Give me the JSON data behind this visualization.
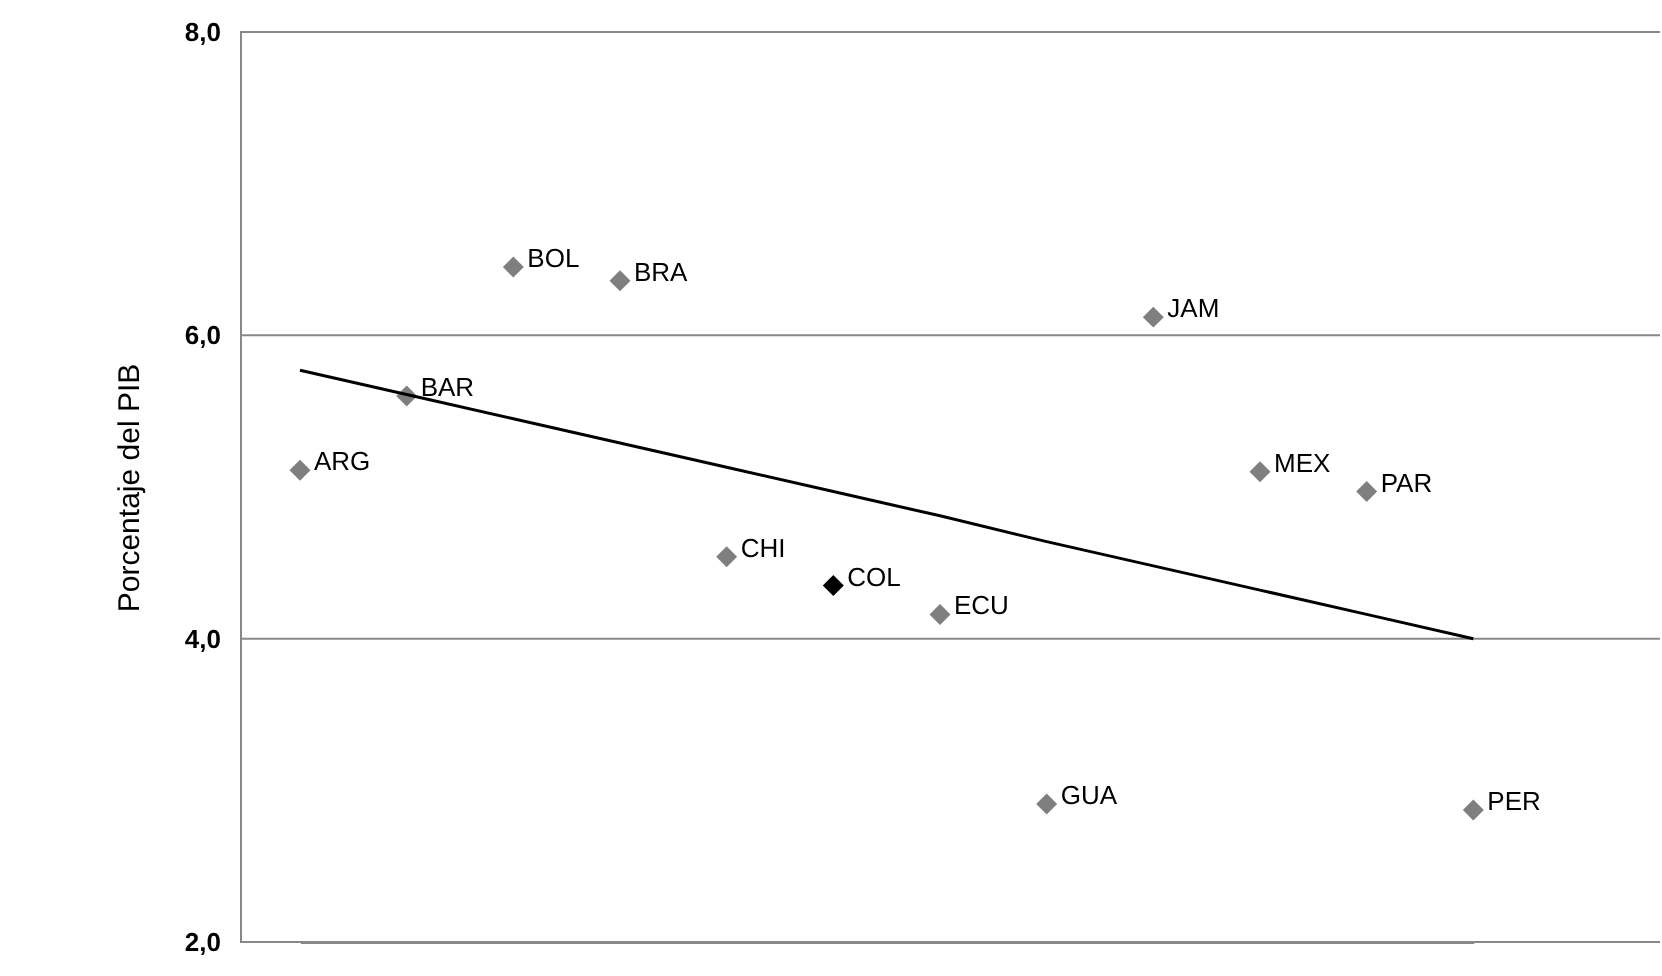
{
  "chart_data": {
    "type": "scatter",
    "ylabel": "Porcentaje del PIB",
    "categories": [
      null,
      null,
      null,
      null,
      null,
      null,
      null,
      null,
      null,
      null,
      null,
      null
    ],
    "ylim": [
      2,
      8
    ],
    "yticks": [
      {
        "value": 2,
        "label": "2,0"
      },
      {
        "value": 4,
        "label": "4,0"
      },
      {
        "value": 6,
        "label": "6,0"
      },
      {
        "value": 8,
        "label": "8,0"
      }
    ],
    "tick_labels": "y",
    "grid": "y",
    "marker": "diamond",
    "series": [
      {
        "values": [
          5.11,
          5.6,
          6.45,
          6.36,
          4.54,
          4.35,
          4.16,
          2.91,
          6.12,
          5.1,
          4.97,
          2.87
        ],
        "colors": [
          "#7f7f7f",
          "#7f7f7f",
          "#7f7f7f",
          "#7f7f7f",
          "#7f7f7f",
          "#000000",
          "#7f7f7f",
          "#7f7f7f",
          "#7f7f7f",
          "#7f7f7f",
          "#7f7f7f",
          "#7f7f7f"
        ],
        "value_labels": [
          "ARG",
          "BAR",
          "BOL",
          "BRA",
          "CHI",
          "COL",
          "ECU",
          "GUA",
          "JAM",
          "MEX",
          "PAR",
          "PER"
        ]
      },
      {
        "type": "line",
        "values": [
          5.77,
          5.61,
          5.45,
          5.29,
          5.13,
          4.97,
          4.81,
          4.64,
          4.48,
          4.32,
          4.16,
          4.0
        ],
        "color": "#000000",
        "line_style": "solid",
        "marker": "none"
      }
    ]
  }
}
